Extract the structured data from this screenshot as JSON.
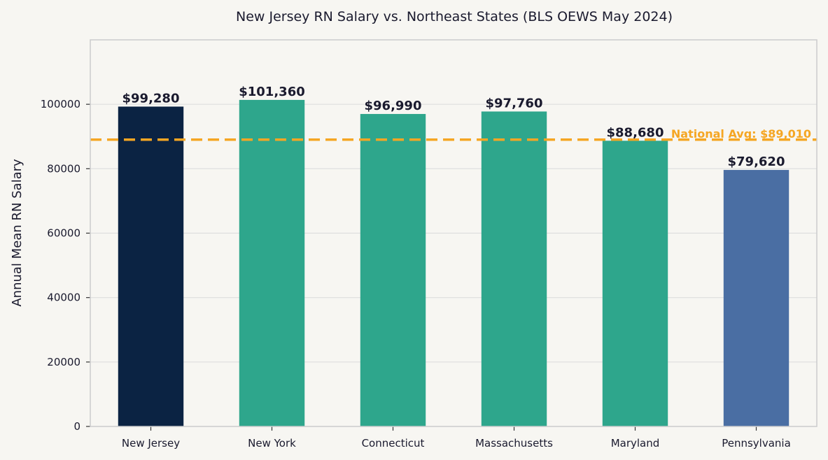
{
  "chart_data": {
    "type": "bar",
    "title": "New Jersey RN Salary vs. Northeast States (BLS OEWS May 2024)",
    "xlabel": "",
    "ylabel": "Annual Mean RN Salary",
    "categories": [
      "New Jersey",
      "New York",
      "Connecticut",
      "Massachusetts",
      "Maryland",
      "Pennsylvania"
    ],
    "values": [
      99280,
      101360,
      96990,
      97760,
      88680,
      79620
    ],
    "value_labels": [
      "$99,280",
      "$101,360",
      "$96,990",
      "$97,760",
      "$88,680",
      "$79,620"
    ],
    "bar_colors": [
      "#0b2343",
      "#2ea68c",
      "#2ea68c",
      "#2ea68c",
      "#2ea68c",
      "#4a6ea3"
    ],
    "ylim": [
      0,
      120000
    ],
    "yticks": [
      0,
      20000,
      40000,
      60000,
      80000,
      100000
    ],
    "grid": "horizontal",
    "reference_line": {
      "value": 89010,
      "label": "National Avg: $89,010",
      "color": "#f5a623",
      "style": "dashed"
    },
    "background": "#f7f6f2",
    "frame_color": "#cccccc",
    "grid_color": "#dedede"
  }
}
